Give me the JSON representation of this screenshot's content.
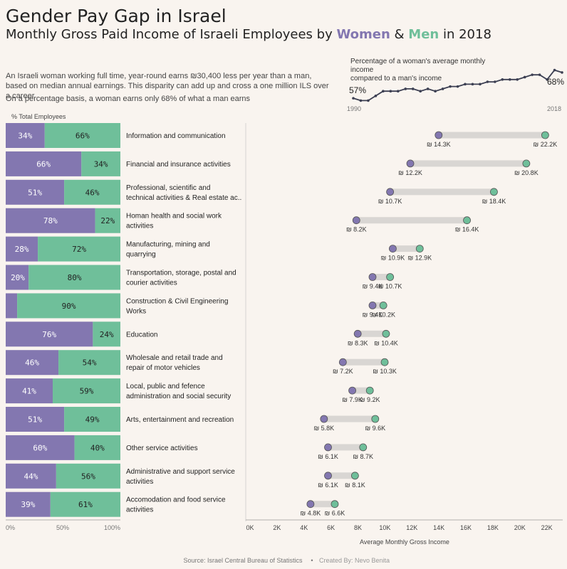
{
  "title": "Gender Pay Gap in Israel",
  "subtitle": {
    "pre": "Monthly Gross Paid Income of Israeli Employees by ",
    "women": "Women",
    "amp": " & ",
    "men": "Men",
    "post": " in 2018"
  },
  "description": [
    "An Israeli woman working full time, year-round earns ₪30,400 less per year than a man, based on median annual earnings. This disparity can add up and cross a one million ILS over a career",
    "On a percentage basis, a woman earns only 68% of what a man earns"
  ],
  "colors": {
    "women": "#8377b0",
    "men": "#6fbf9a",
    "gap": "#d9d6d3",
    "line": "#3c3f52",
    "background": "#f9f4ef"
  },
  "footer": {
    "source": "Source: Israel Central Bureau of Statistics",
    "sep": "•",
    "credit": "Created By: Nevo Benita"
  },
  "chart_data": [
    {
      "type": "line",
      "title": "Percentage of a woman's average monthly income compared to a man's income",
      "title_lines": [
        "Percentage of a woman's average monthly",
        "income",
        "compared to a man's income"
      ],
      "x": [
        1990,
        1991,
        1992,
        1993,
        1994,
        1995,
        1996,
        1997,
        1998,
        1999,
        2000,
        2001,
        2002,
        2003,
        2004,
        2005,
        2006,
        2007,
        2008,
        2009,
        2010,
        2011,
        2012,
        2013,
        2014,
        2015,
        2016,
        2017,
        2018
      ],
      "y": [
        57,
        56,
        56,
        58,
        60,
        60,
        60,
        61,
        61,
        60,
        61,
        60,
        61,
        62,
        62,
        63,
        63,
        63,
        64,
        64,
        65,
        65,
        65,
        66,
        67,
        67,
        65,
        69,
        68
      ],
      "x_tick_labels": [
        "1990",
        "2018"
      ],
      "start_label": "57%",
      "end_label": "68%",
      "ylim": [
        54,
        71
      ]
    },
    {
      "type": "bar",
      "stacked": true,
      "orientation": "horizontal",
      "title": "% Total Employees",
      "xlabel": "",
      "x_tick_labels": [
        "0%",
        "50%",
        "100%"
      ],
      "categories": [
        "Information and communication",
        "Financial and insurance activities",
        "Professional, scientific and technical activities & Real estate ac..",
        "Homan health and social work activities",
        "Manufacturing, mining and quarrying",
        "Transportation, storage, postal and courier activities",
        "Construction & Civil Engineering Works",
        "Education",
        "Wholesale and retail trade and repair of motor vehicles",
        "Local, public and fefence administration and social security",
        "Arts, entertainment and recreation",
        "Other service activities",
        "Administrative and support service activities",
        "Accomodation and food service activities"
      ],
      "category_lines": [
        [
          "Information and communication"
        ],
        [
          "Financial and insurance activities"
        ],
        [
          "Professional, scientific and",
          "technical activities & Real estate ac.."
        ],
        [
          "Homan health and social work",
          "activities"
        ],
        [
          "Manufacturing, mining and",
          "quarrying"
        ],
        [
          "Transportation, storage, postal and",
          "courier activities"
        ],
        [
          "Construction & Civil Engineering",
          "Works"
        ],
        [
          "Education"
        ],
        [
          "Wholesale and retail trade and",
          "repair of motor vehicles"
        ],
        [
          "Local, public and fefence",
          "administration and social security"
        ],
        [
          "Arts, entertainment and recreation"
        ],
        [
          "Other service activities"
        ],
        [
          "Administrative and support service",
          "activities"
        ],
        [
          "Accomodation and food service",
          "activities"
        ]
      ],
      "series": [
        {
          "name": "Women",
          "values": [
            34,
            66,
            51,
            78,
            28,
            20,
            10,
            76,
            46,
            41,
            51,
            60,
            44,
            39
          ],
          "labels": [
            "34%",
            "66%",
            "51%",
            "78%",
            "28%",
            "20%",
            "",
            "76%",
            "46%",
            "41%",
            "51%",
            "60%",
            "44%",
            "39%"
          ]
        },
        {
          "name": "Men",
          "values": [
            66,
            34,
            46,
            22,
            72,
            80,
            90,
            24,
            54,
            59,
            49,
            40,
            56,
            61
          ],
          "labels": [
            "66%",
            "34%",
            "46%",
            "22%",
            "72%",
            "80%",
            "90%",
            "24%",
            "54%",
            "59%",
            "49%",
            "40%",
            "56%",
            "61%"
          ]
        }
      ]
    },
    {
      "type": "scatter",
      "subtype": "dumbbell",
      "xlabel": "Average Monthly Gross Income",
      "x_tick_labels": [
        "0K",
        "2K",
        "4K",
        "6K",
        "8K",
        "10K",
        "12K",
        "14K",
        "16K",
        "18K",
        "20K",
        "22K"
      ],
      "xlim": [
        0,
        23500
      ],
      "series": [
        {
          "name": "Women",
          "values": [
            14300,
            12200,
            10700,
            8200,
            10900,
            9400,
            9400,
            8300,
            7200,
            7900,
            5800,
            6100,
            6100,
            4800
          ],
          "labels": [
            "₪ 14.3K",
            "₪ 12.2K",
            "₪ 10.7K",
            "₪ 8.2K",
            "₪ 10.9K",
            "₪ 9.4K",
            "₪ 9.4K",
            "₪ 8.3K",
            "₪ 7.2K",
            "₪ 7.9K",
            "₪ 5.8K",
            "₪ 6.1K",
            "₪ 6.1K",
            "₪ 4.8K"
          ]
        },
        {
          "name": "Men",
          "values": [
            22200,
            20800,
            18400,
            16400,
            12900,
            10700,
            10200,
            10400,
            10300,
            9200,
            9600,
            8700,
            8100,
            6600
          ],
          "labels": [
            "₪ 22.2K",
            "₪ 20.8K",
            "₪ 18.4K",
            "₪ 16.4K",
            "₪ 12.9K",
            "₪ 10.7K",
            "₪ 10.2K",
            "₪ 10.4K",
            "₪ 10.3K",
            "₪ 9.2K",
            "₪ 9.6K",
            "₪ 8.7K",
            "₪ 8.1K",
            "₪ 6.6K"
          ]
        }
      ]
    }
  ]
}
